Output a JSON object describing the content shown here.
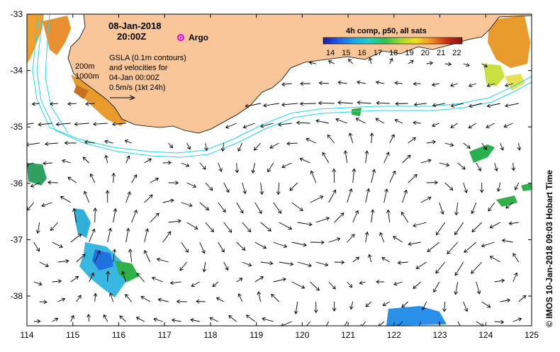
{
  "title": {
    "date": "08-Jan-2018",
    "time": "20:00Z"
  },
  "legend": {
    "argo_label": "Argo",
    "argo_color": "#e000e0",
    "gsla_lines": [
      "GSLA (0.1m contours)",
      "and velocities for",
      "04-Jan 00:00Z",
      "0.5m/s (1kt 24h)"
    ],
    "isobath_labels": [
      "200m",
      "1000m"
    ]
  },
  "colorbar": {
    "title": "4h comp, p50, all sats",
    "ticks": [
      "14",
      "15",
      "16",
      "17",
      "18",
      "19",
      "20",
      "21",
      "22"
    ],
    "stops": [
      "#1a1aa8",
      "#1e5ee8",
      "#18a8e8",
      "#20d0c0",
      "#30c050",
      "#a0d830",
      "#f0e020",
      "#f09020",
      "#c83018",
      "#8a1010"
    ]
  },
  "axes": {
    "x_ticks": [
      "114",
      "115",
      "116",
      "117",
      "118",
      "119",
      "120",
      "121",
      "122",
      "123",
      "124",
      "125"
    ],
    "y_ticks": [
      "-33",
      "-34",
      "-35",
      "-36",
      "-37",
      "-38"
    ]
  },
  "credit": "©  IMOS 10-Jan-2018 09:03 Hobart Time",
  "colors": {
    "land": "#f8c698",
    "contour": "#20d8e8",
    "arrow": "#000000",
    "frame": "#000000"
  }
}
